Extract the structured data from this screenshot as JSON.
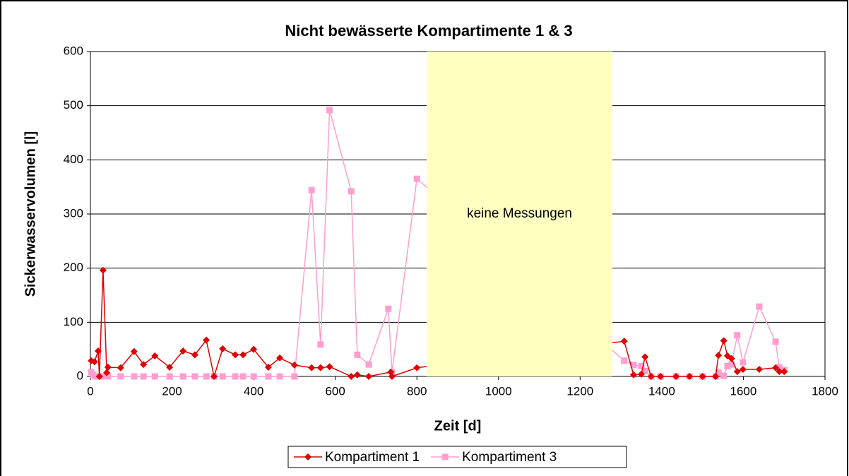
{
  "chart_data": {
    "type": "line",
    "title": "Nicht bewässerte Kompartimente 1 & 3",
    "x_label": "Zeit [d]",
    "y_label": "Sickerwasservolumen [l]",
    "xlim": [
      0,
      1800
    ],
    "xticks": [
      0,
      200,
      400,
      600,
      800,
      1000,
      1200,
      1400,
      1600,
      1800
    ],
    "ylim": [
      0,
      600
    ],
    "yticks": [
      0,
      100,
      200,
      300,
      400,
      500,
      600
    ],
    "grid": true,
    "legend": "bottom",
    "shaded_region": {
      "label": "keine Messungen",
      "xlim": [
        824,
        1279
      ],
      "color": "#ffffc0"
    },
    "series": [
      {
        "name": "Kompartiment 1",
        "color": "#e00000",
        "marker": "diamond",
        "x": [
          2,
          10,
          19,
          22,
          31,
          40,
          43,
          74,
          107,
          130,
          158,
          194,
          227,
          256,
          284,
          303,
          324,
          355,
          374,
          400,
          436,
          464,
          500,
          542,
          564,
          586,
          639,
          654,
          682,
          736,
          739,
          800,
          1308,
          1331,
          1350,
          1359,
          1374,
          1397,
          1435,
          1468,
          1500,
          1532,
          1539,
          1552,
          1561,
          1571,
          1585,
          1599,
          1639,
          1679,
          1688,
          1700
        ],
        "values": [
          29,
          27,
          47,
          0,
          196,
          7,
          17,
          16,
          46,
          22,
          38,
          17,
          47,
          40,
          67,
          0,
          51,
          40,
          40,
          50,
          17,
          34,
          21,
          16,
          16,
          18,
          0,
          3,
          0,
          8,
          0,
          16,
          65,
          3,
          4,
          36,
          0,
          0,
          0,
          0,
          0,
          0,
          39,
          66,
          38,
          33,
          9,
          13,
          13,
          16,
          9,
          9
        ]
      },
      {
        "name": "Kompartiment 3",
        "color": "#ff9ecf",
        "marker": "square",
        "x": [
          2,
          7,
          12,
          22,
          31,
          40,
          43,
          74,
          107,
          130,
          158,
          194,
          227,
          256,
          284,
          303,
          324,
          355,
          374,
          400,
          436,
          464,
          500,
          542,
          564,
          586,
          639,
          654,
          682,
          730,
          739,
          800,
          1308,
          1331,
          1350,
          1359,
          1374,
          1397,
          1435,
          1468,
          1500,
          1532,
          1539,
          1552,
          1561,
          1571,
          1585,
          1599,
          1639,
          1679,
          1688,
          1700
        ],
        "values": [
          8,
          3,
          0,
          0,
          0,
          0,
          0,
          0,
          0,
          0,
          0,
          0,
          0,
          0,
          0,
          0,
          0,
          0,
          0,
          0,
          0,
          0,
          0,
          344,
          59,
          492,
          342,
          40,
          22,
          125,
          8,
          365,
          29,
          21,
          19,
          10,
          0,
          0,
          0,
          0,
          0,
          0,
          7,
          1,
          19,
          22,
          76,
          26,
          129,
          64,
          17,
          12
        ]
      }
    ]
  }
}
